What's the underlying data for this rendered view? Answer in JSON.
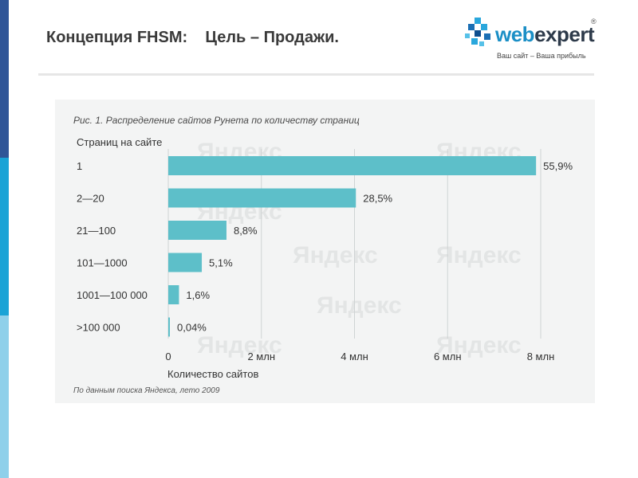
{
  "slide": {
    "title": "Концепция FHSM:    Цель – Продажи.",
    "logo": {
      "part1": "web",
      "part2": "expert",
      "reg": "®",
      "slogan": "Ваш сайт – Ваша прибыль"
    },
    "accent_colors": [
      "#2f5597",
      "#19a3d6",
      "#8fd0ea"
    ]
  },
  "figure": {
    "caption": "Рис. 1. Распределение сайтов Рунета по количеству страниц",
    "source": "По данным поиска Яндекса, лето 2009",
    "watermark_text": "Яндекс"
  },
  "chart_data": {
    "type": "bar",
    "orientation": "horizontal",
    "title": "Рис. 1. Распределение сайтов Рунета по количеству страниц",
    "ylabel": "Страниц на сайте",
    "xlabel": "Количество сайтов",
    "categories": [
      "1",
      "2—20",
      "21—100",
      "101—1000",
      "1001—100 000",
      ">100 000"
    ],
    "values": [
      7900000,
      4030000,
      1250000,
      720000,
      230000,
      6000
    ],
    "data_labels": [
      "55,9%",
      "28,5%",
      "8,8%",
      "5,1%",
      "1,6%",
      "0,04%"
    ],
    "percent_values": [
      55.9,
      28.5,
      8.8,
      5.1,
      1.6,
      0.04
    ],
    "xlim": [
      0,
      8000000
    ],
    "x_ticks": [
      0,
      2000000,
      4000000,
      6000000,
      8000000
    ],
    "x_tick_labels": [
      "0",
      "2 млн",
      "4 млн",
      "6 млн",
      "8 млн"
    ],
    "grid": true,
    "bar_color": "#5dbfc9",
    "grid_color": "#cfd3d4"
  }
}
